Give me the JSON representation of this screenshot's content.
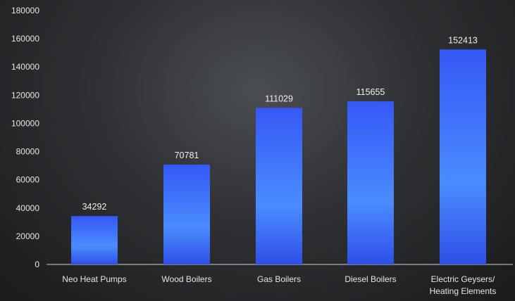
{
  "chart_data": {
    "type": "bar",
    "categories": [
      [
        "Neo Heat Pumps"
      ],
      [
        "Wood Boilers"
      ],
      [
        "Gas Boilers"
      ],
      [
        "Diesel Boilers"
      ],
      [
        "Electric Geysers/",
        "Heating Elements"
      ]
    ],
    "values": [
      34292,
      70781,
      111029,
      115655,
      152413
    ],
    "data_labels": [
      "34292",
      "70781",
      "111029",
      "115655",
      "152413"
    ],
    "ylim": [
      0,
      180000
    ],
    "yticks": [
      0,
      20000,
      40000,
      60000,
      80000,
      100000,
      120000,
      140000,
      160000,
      180000
    ],
    "ytick_labels": [
      "0",
      "20000",
      "40000",
      "60000",
      "80000",
      "100000",
      "120000",
      "140000",
      "160000",
      "180000"
    ],
    "title": "",
    "xlabel": "",
    "ylabel": "",
    "grid": false,
    "legend": "none",
    "bar_color_top": "#3558f5",
    "bar_color_mid": "#4a8cff",
    "bar_color_bottom": "#2f4fe6",
    "axis_color": "#cfcfcf",
    "background_color": "#2e3033"
  }
}
